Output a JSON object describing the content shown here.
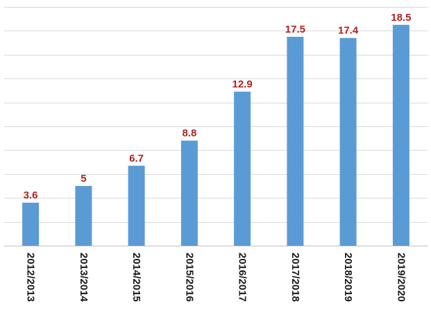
{
  "chart_data": {
    "type": "bar",
    "categories": [
      "2012/2013",
      "2013/2014",
      "2014/2015",
      "2015/2016",
      "2016/2017",
      "2017/2018",
      "2018/2019",
      "2019/2020"
    ],
    "values": [
      3.6,
      5,
      6.7,
      8.8,
      12.9,
      17.5,
      17.4,
      18.5
    ],
    "data_labels": [
      "3.6",
      "5",
      "6.7",
      "8.8",
      "12.9",
      "17.5",
      "17.4",
      "18.5"
    ],
    "title": "",
    "xlabel": "",
    "ylabel": "",
    "ylim": [
      0,
      20
    ],
    "grid": true,
    "legend": "none",
    "colors": {
      "bar": "#5b9bd5",
      "data_label": "#b22222",
      "grid": "#d9d9d9"
    }
  }
}
